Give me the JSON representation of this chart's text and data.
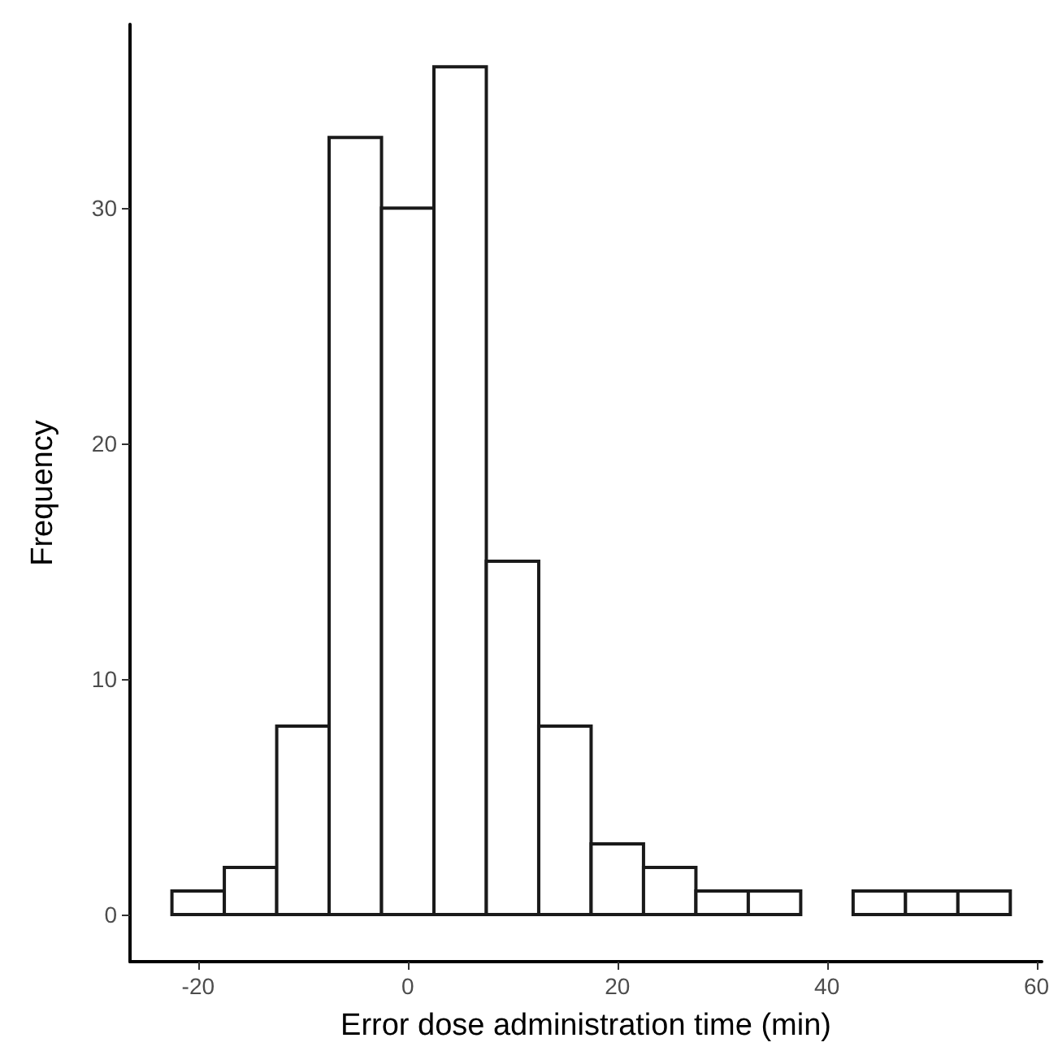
{
  "chart_data": {
    "type": "histogram",
    "xlabel": "Error dose administration time (min)",
    "ylabel": "Frequency",
    "bins": [
      -22.5,
      -17.5,
      -12.5,
      -7.5,
      -2.5,
      2.5,
      7.5,
      12.5,
      17.5,
      22.5,
      27.5,
      32.5,
      37.5,
      42.5,
      47.5,
      52.5,
      57.5
    ],
    "values": [
      1,
      2,
      8,
      33,
      30,
      36,
      15,
      8,
      3,
      2,
      1,
      1,
      0,
      1,
      1,
      1
    ],
    "color": "#ffffff",
    "xlim": [
      -26.5,
      60.5
    ],
    "xticks": [
      -20,
      0,
      20,
      40,
      60
    ],
    "ylim": [
      -2,
      37.8
    ],
    "yticks": [
      0,
      10,
      20,
      30
    ],
    "grid": false
  }
}
